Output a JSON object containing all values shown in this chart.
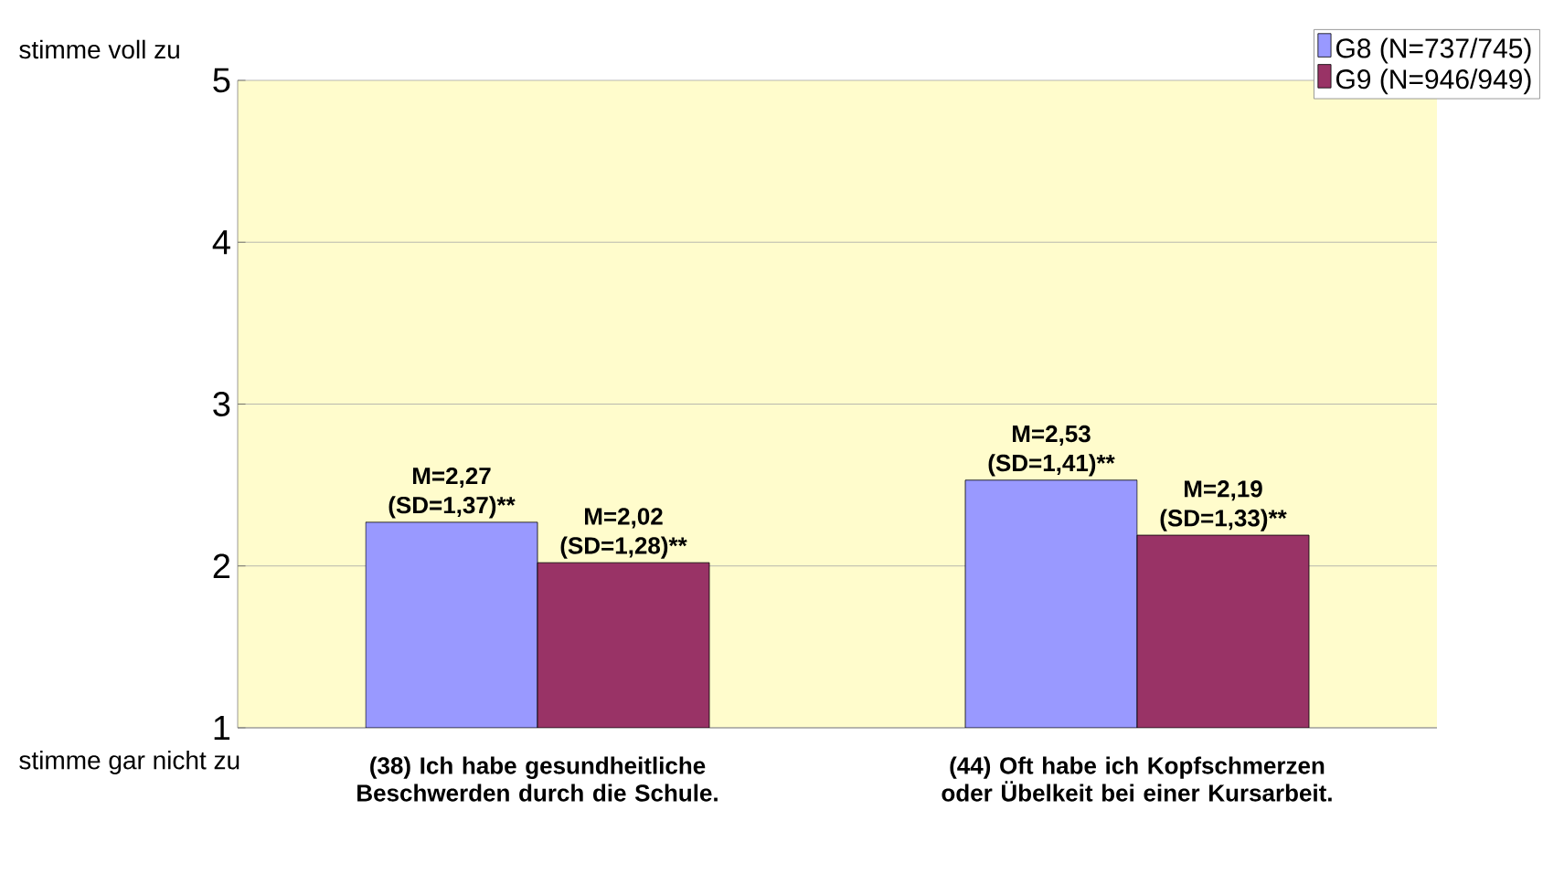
{
  "chart_data": {
    "type": "bar",
    "categories": [
      "(38) Ich habe gesundheitliche Beschwerden durch die Schule.",
      "(44) Oft habe ich Kopfschmerzen oder Übelkeit bei einer Kursarbeit."
    ],
    "series": [
      {
        "name": "G8 (N=737/745)",
        "color": "#9999ff",
        "values": [
          2.27,
          2.53
        ],
        "value_labels": [
          "M=2,27 (SD=1,37)**",
          "M=2,53 (SD=1,41)**"
        ]
      },
      {
        "name": "G9 (N=946/949)",
        "color": "#993366",
        "values": [
          2.02,
          2.19
        ],
        "value_labels": [
          "M=2,02 (SD=1,28)**",
          "M=2,19 (SD=1,33)**"
        ]
      }
    ],
    "ylim": [
      1,
      5
    ],
    "yticks": [
      1,
      2,
      3,
      4,
      5
    ],
    "grid": "y",
    "legend": "top right",
    "annotations": [
      "stimme voll zu",
      "stimme gar nicht zu"
    ]
  }
}
